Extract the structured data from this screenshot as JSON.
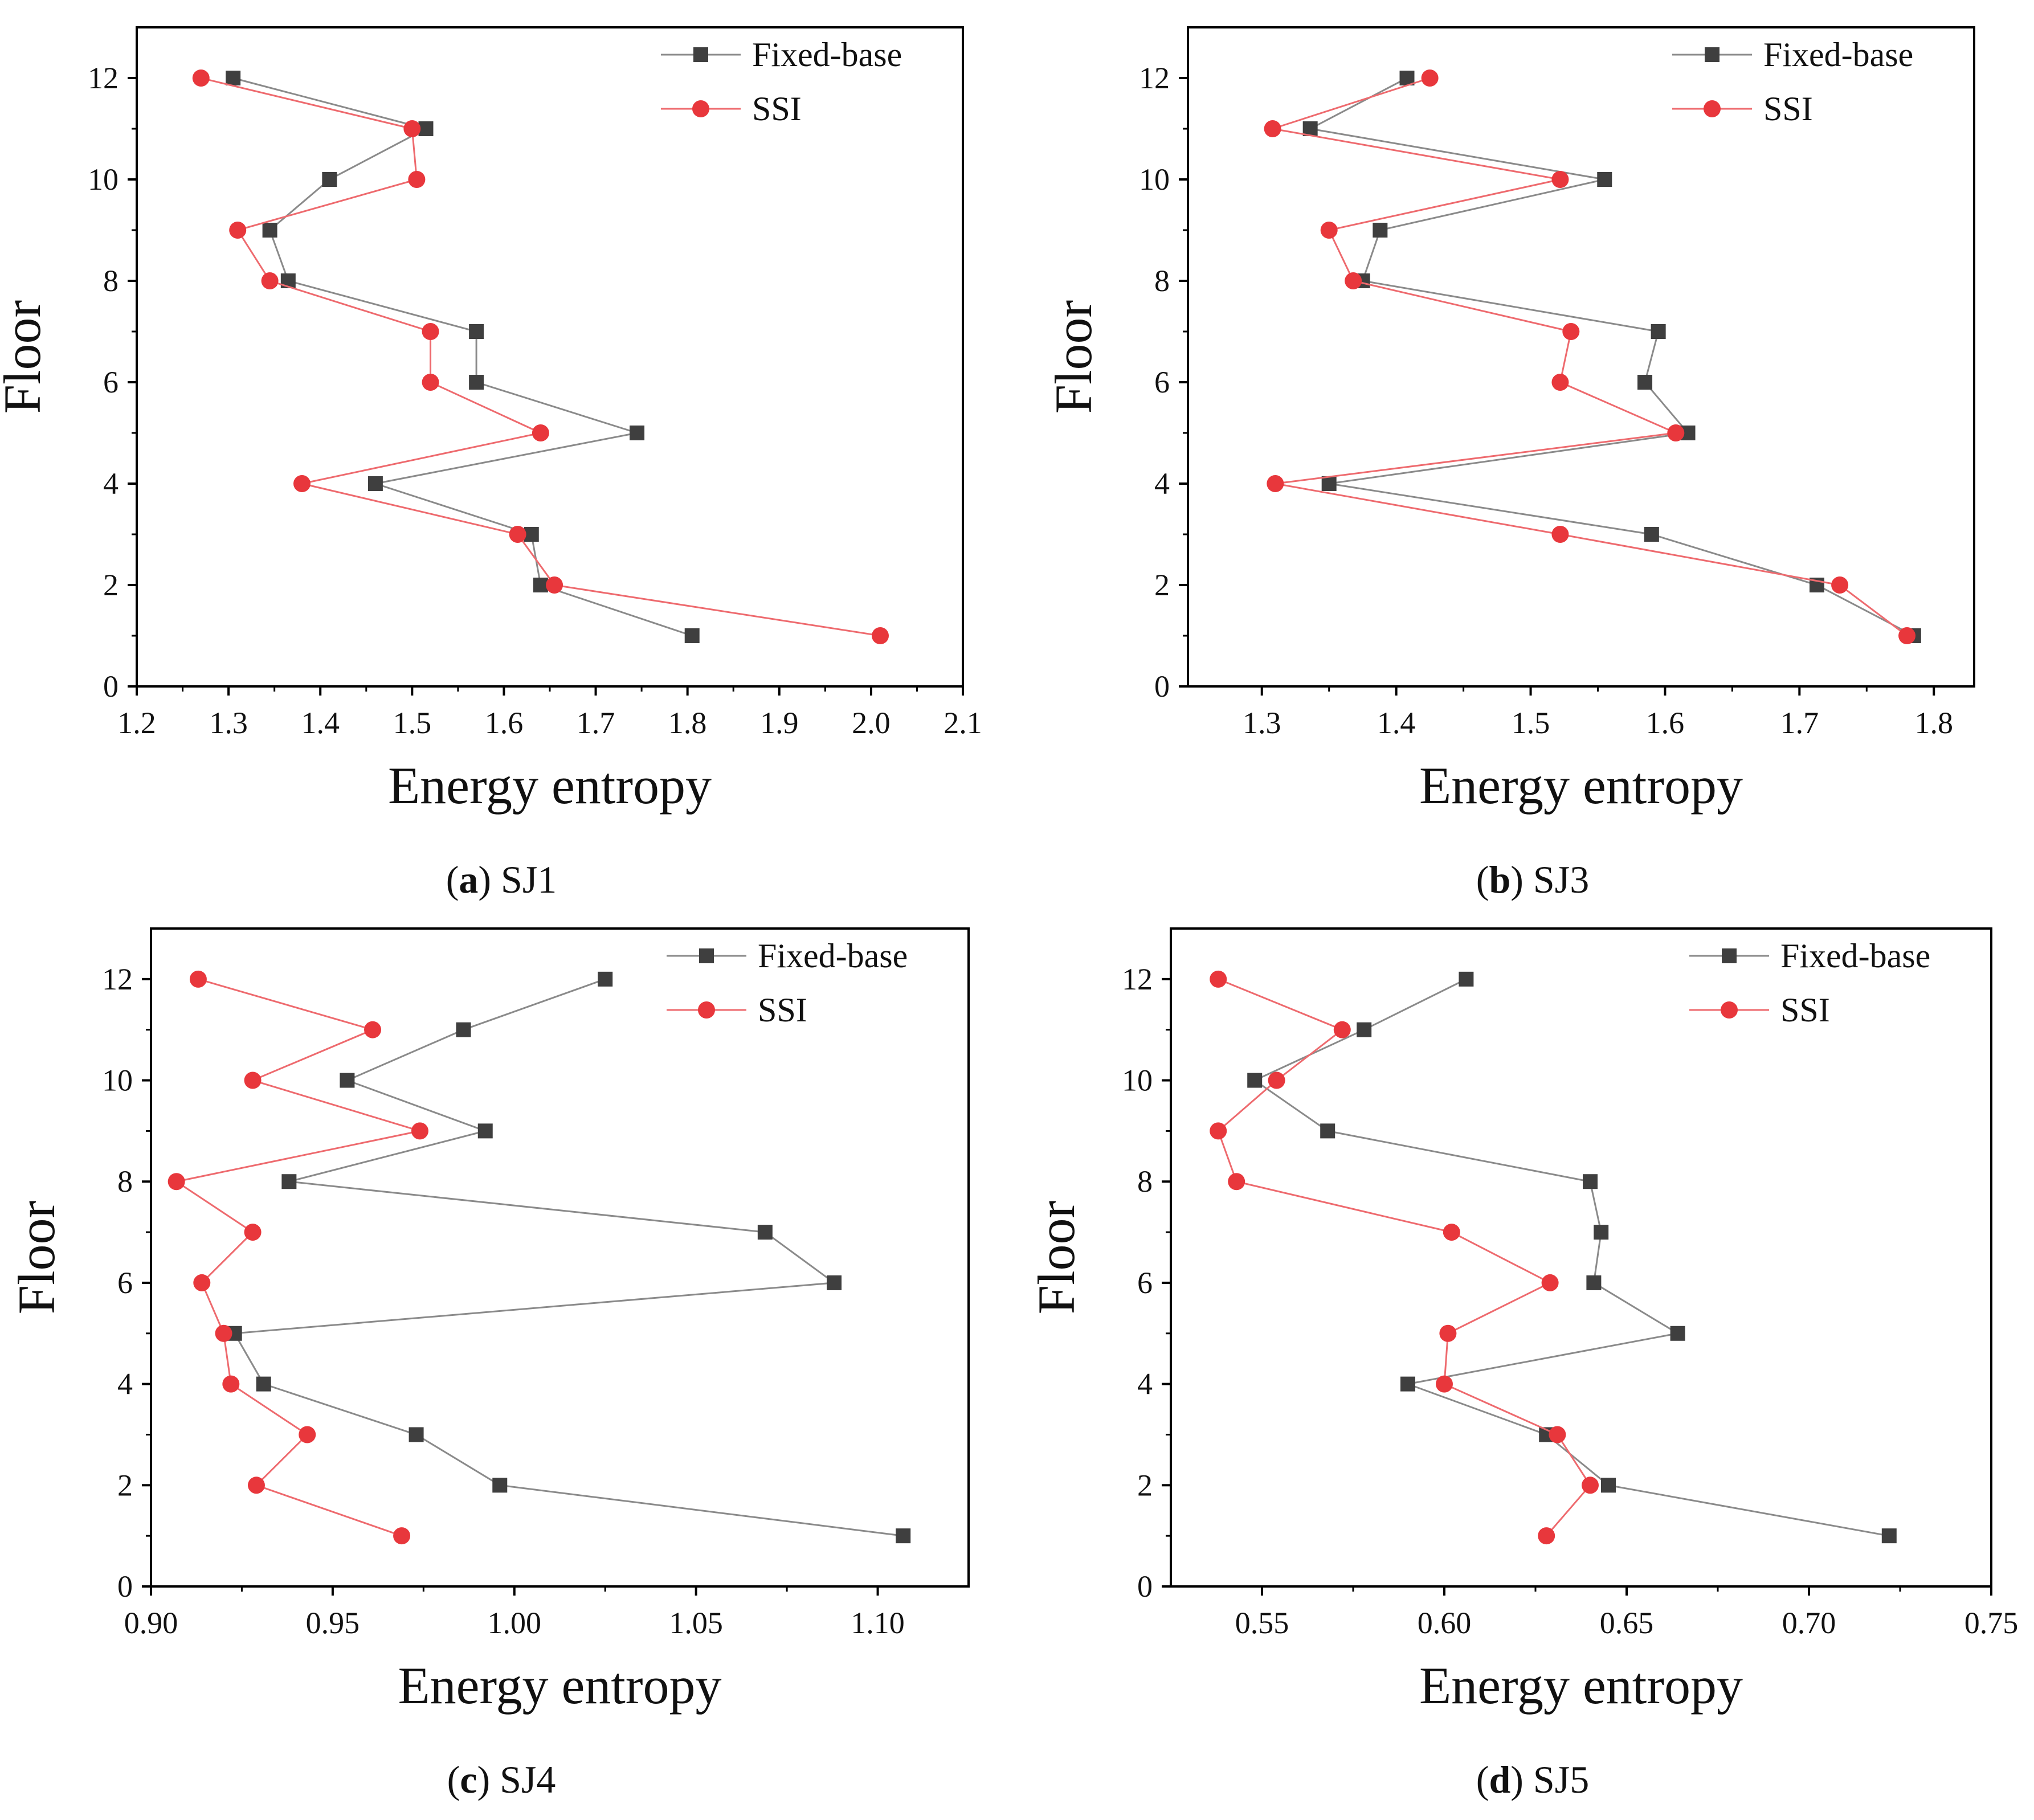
{
  "figure": {
    "captions": [
      {
        "letter": "a",
        "label": "SJ1"
      },
      {
        "letter": "b",
        "label": "SJ3"
      },
      {
        "letter": "c",
        "label": "SJ4"
      },
      {
        "letter": "d",
        "label": "SJ5"
      }
    ]
  },
  "colors": {
    "fixed_base": "#3f3f3f",
    "fixed_base_line": "#8a8a8a",
    "ssi": "#e8373c",
    "ssi_line": "#ee6a6e",
    "axis": "#000000"
  },
  "chart_data": [
    {
      "type": "line",
      "title": "(a) SJ1",
      "xlabel": "Energy entropy",
      "ylabel": "Floor",
      "xlim": [
        1.2,
        2.1
      ],
      "ylim": [
        0,
        13
      ],
      "xticks": [
        1.2,
        1.3,
        1.4,
        1.5,
        1.6,
        1.7,
        1.8,
        1.9,
        2.0,
        2.1
      ],
      "xtick_labels": [
        "1.2",
        "1.3",
        "1.4",
        "1.5",
        "1.6",
        "1.7",
        "1.8",
        "1.9",
        "2.0",
        "2.1"
      ],
      "yticks": [
        0,
        2,
        4,
        6,
        8,
        10,
        12
      ],
      "ytick_labels": [
        "0",
        "2",
        "4",
        "6",
        "8",
        "10",
        "12"
      ],
      "legend": "top-right",
      "series": [
        {
          "name": "Fixed-base",
          "marker": "square",
          "x": [
            1.305,
            1.515,
            1.41,
            1.345,
            1.365,
            1.57,
            1.57,
            1.745,
            1.46,
            1.63,
            1.64,
            1.805
          ],
          "y": [
            12,
            11,
            10,
            9,
            8,
            7,
            6,
            5,
            4,
            3,
            2,
            1
          ]
        },
        {
          "name": "SSI",
          "marker": "circle",
          "x": [
            1.27,
            1.5,
            1.505,
            1.31,
            1.345,
            1.52,
            1.52,
            1.64,
            1.38,
            1.615,
            1.655,
            2.01
          ],
          "y": [
            12,
            11,
            10,
            9,
            8,
            7,
            6,
            5,
            4,
            3,
            2,
            1
          ]
        }
      ]
    },
    {
      "type": "line",
      "title": "(b) SJ3",
      "xlabel": "Energy entropy",
      "ylabel": "Floor",
      "xlim": [
        1.245,
        1.83
      ],
      "ylim": [
        0,
        13
      ],
      "xticks": [
        1.3,
        1.4,
        1.5,
        1.6,
        1.7,
        1.8
      ],
      "xtick_labels": [
        "1.3",
        "1.4",
        "1.5",
        "1.6",
        "1.7",
        "1.8"
      ],
      "yticks": [
        0,
        2,
        4,
        6,
        8,
        10,
        12
      ],
      "ytick_labels": [
        "0",
        "2",
        "4",
        "6",
        "8",
        "10",
        "12"
      ],
      "legend": "top-right",
      "series": [
        {
          "name": "Fixed-base",
          "marker": "square",
          "x": [
            1.408,
            1.336,
            1.555,
            1.388,
            1.375,
            1.595,
            1.585,
            1.617,
            1.35,
            1.59,
            1.713,
            1.785
          ],
          "y": [
            12,
            11,
            10,
            9,
            8,
            7,
            6,
            5,
            4,
            3,
            2,
            1
          ]
        },
        {
          "name": "SSI",
          "marker": "circle",
          "x": [
            1.425,
            1.308,
            1.522,
            1.35,
            1.368,
            1.53,
            1.522,
            1.608,
            1.31,
            1.522,
            1.73,
            1.78
          ],
          "y": [
            12,
            11,
            10,
            9,
            8,
            7,
            6,
            5,
            4,
            3,
            2,
            1
          ]
        }
      ]
    },
    {
      "type": "line",
      "title": "(c) SJ4",
      "xlabel": "Energy entropy",
      "ylabel": "Floor",
      "xlim": [
        0.9,
        1.125
      ],
      "ylim": [
        0,
        13
      ],
      "xticks": [
        0.9,
        0.95,
        1.0,
        1.05,
        1.1
      ],
      "xtick_labels": [
        "0.90",
        "0.95",
        "1.00",
        "1.05",
        "1.10"
      ],
      "yticks": [
        0,
        2,
        4,
        6,
        8,
        10,
        12
      ],
      "ytick_labels": [
        "0",
        "2",
        "4",
        "6",
        "8",
        "10",
        "12"
      ],
      "legend": "top-right",
      "series": [
        {
          "name": "Fixed-base",
          "marker": "square",
          "x": [
            1.025,
            0.986,
            0.954,
            0.992,
            0.938,
            1.069,
            1.088,
            0.923,
            0.931,
            0.973,
            0.996,
            1.107
          ],
          "y": [
            12,
            11,
            10,
            9,
            8,
            7,
            6,
            5,
            4,
            3,
            2,
            1
          ]
        },
        {
          "name": "SSI",
          "marker": "circle",
          "x": [
            0.913,
            0.961,
            0.928,
            0.974,
            0.907,
            0.928,
            0.914,
            0.92,
            0.922,
            0.943,
            0.929,
            0.969
          ],
          "y": [
            12,
            11,
            10,
            9,
            8,
            7,
            6,
            5,
            4,
            3,
            2,
            1
          ]
        }
      ]
    },
    {
      "type": "line",
      "title": "(d) SJ5",
      "xlabel": "Energy entropy",
      "ylabel": "Floor",
      "xlim": [
        0.525,
        0.75
      ],
      "ylim": [
        0,
        13
      ],
      "xticks": [
        0.55,
        0.6,
        0.65,
        0.7,
        0.75
      ],
      "xtick_labels": [
        "0.55",
        "0.60",
        "0.65",
        "0.70",
        "0.75"
      ],
      "yticks": [
        0,
        2,
        4,
        6,
        8,
        10,
        12
      ],
      "ytick_labels": [
        "0",
        "2",
        "4",
        "6",
        "8",
        "10",
        "12"
      ],
      "legend": "top-right",
      "series": [
        {
          "name": "Fixed-base",
          "marker": "square",
          "x": [
            0.606,
            0.578,
            0.548,
            0.568,
            0.64,
            0.643,
            0.641,
            0.664,
            0.59,
            0.628,
            0.645,
            0.722
          ],
          "y": [
            12,
            11,
            10,
            9,
            8,
            7,
            6,
            5,
            4,
            3,
            2,
            1
          ]
        },
        {
          "name": "SSI",
          "marker": "circle",
          "x": [
            0.538,
            0.572,
            0.554,
            0.538,
            0.543,
            0.602,
            0.629,
            0.601,
            0.6,
            0.631,
            0.64,
            0.628
          ],
          "y": [
            12,
            11,
            10,
            9,
            8,
            7,
            6,
            5,
            4,
            3,
            2,
            1
          ]
        }
      ]
    }
  ]
}
